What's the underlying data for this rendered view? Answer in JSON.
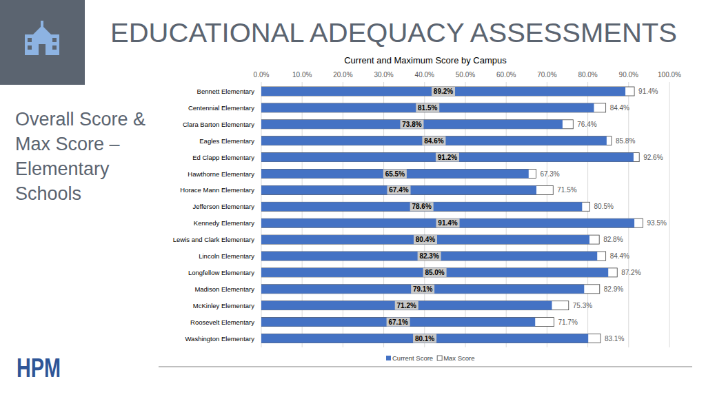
{
  "page": {
    "title": "EDUCATIONAL ADEQUACY ASSESSMENTS",
    "subtitle_lines": [
      "Overall Score &",
      "Max Score –",
      "Elementary",
      "Schools"
    ],
    "logo": "HPM"
  },
  "chart_data": {
    "type": "bar",
    "orientation": "horizontal",
    "title": "Current and Maximum Score by Campus",
    "categories": [
      "Bennett Elementary",
      "Centennial Elementary",
      "Clara Barton Elementary",
      "Eagles Elementary",
      "Ed Clapp Elementary",
      "Hawthorne Elementary",
      "Horace Mann Elementary",
      "Jefferson Elementary",
      "Kennedy Elementary",
      "Lewis and Clark Elementary",
      "Lincoln Elementary",
      "Longfellow Elementary",
      "Madison Elementary",
      "McKinley Elementary",
      "Roosevelt Elementary",
      "Washington Elementary"
    ],
    "series": [
      {
        "name": "Current Score",
        "color": "#4472c4",
        "values": [
          89.2,
          81.5,
          73.8,
          84.6,
          91.2,
          65.5,
          67.4,
          78.6,
          91.4,
          80.4,
          82.3,
          85.0,
          79.1,
          71.2,
          67.1,
          80.1
        ],
        "value_labels": [
          "89.2%",
          "81.5%",
          "73.8%",
          "84.6%",
          "91.2%",
          "65.5%",
          "67.4%",
          "78.6%",
          "91.4%",
          "80.4%",
          "82.3%",
          "85.0%",
          "79.1%",
          "71.2%",
          "67.1%",
          "80.1%"
        ]
      },
      {
        "name": "Max Score",
        "color": "#ffffff",
        "values": [
          91.4,
          84.4,
          76.4,
          85.8,
          92.6,
          67.3,
          71.5,
          80.5,
          93.5,
          82.8,
          84.4,
          87.2,
          82.9,
          75.3,
          71.7,
          83.1
        ],
        "value_labels": [
          "91.4%",
          "84.4%",
          "76.4%",
          "85.8%",
          "92.6%",
          "67.3%",
          "71.5%",
          "80.5%",
          "93.5%",
          "82.8%",
          "84.4%",
          "87.2%",
          "82.9%",
          "75.3%",
          "71.7%",
          "83.1%"
        ]
      }
    ],
    "xlim": [
      0,
      100
    ],
    "xticks": [
      {
        "value": 0,
        "label": "0.0%"
      },
      {
        "value": 10,
        "label": "10.0%"
      },
      {
        "value": 20,
        "label": "20.0%"
      },
      {
        "value": 30,
        "label": "30.0%"
      },
      {
        "value": 40,
        "label": "40.0%"
      },
      {
        "value": 50,
        "label": "50.0%"
      },
      {
        "value": 60,
        "label": "60.0%"
      },
      {
        "value": 70,
        "label": "70.0%"
      },
      {
        "value": 80,
        "label": "80.0%"
      },
      {
        "value": 90,
        "label": "90.0%"
      },
      {
        "value": 100,
        "label": "100.0%"
      }
    ],
    "grid": true,
    "legend": "bottom",
    "data_labels": true
  }
}
